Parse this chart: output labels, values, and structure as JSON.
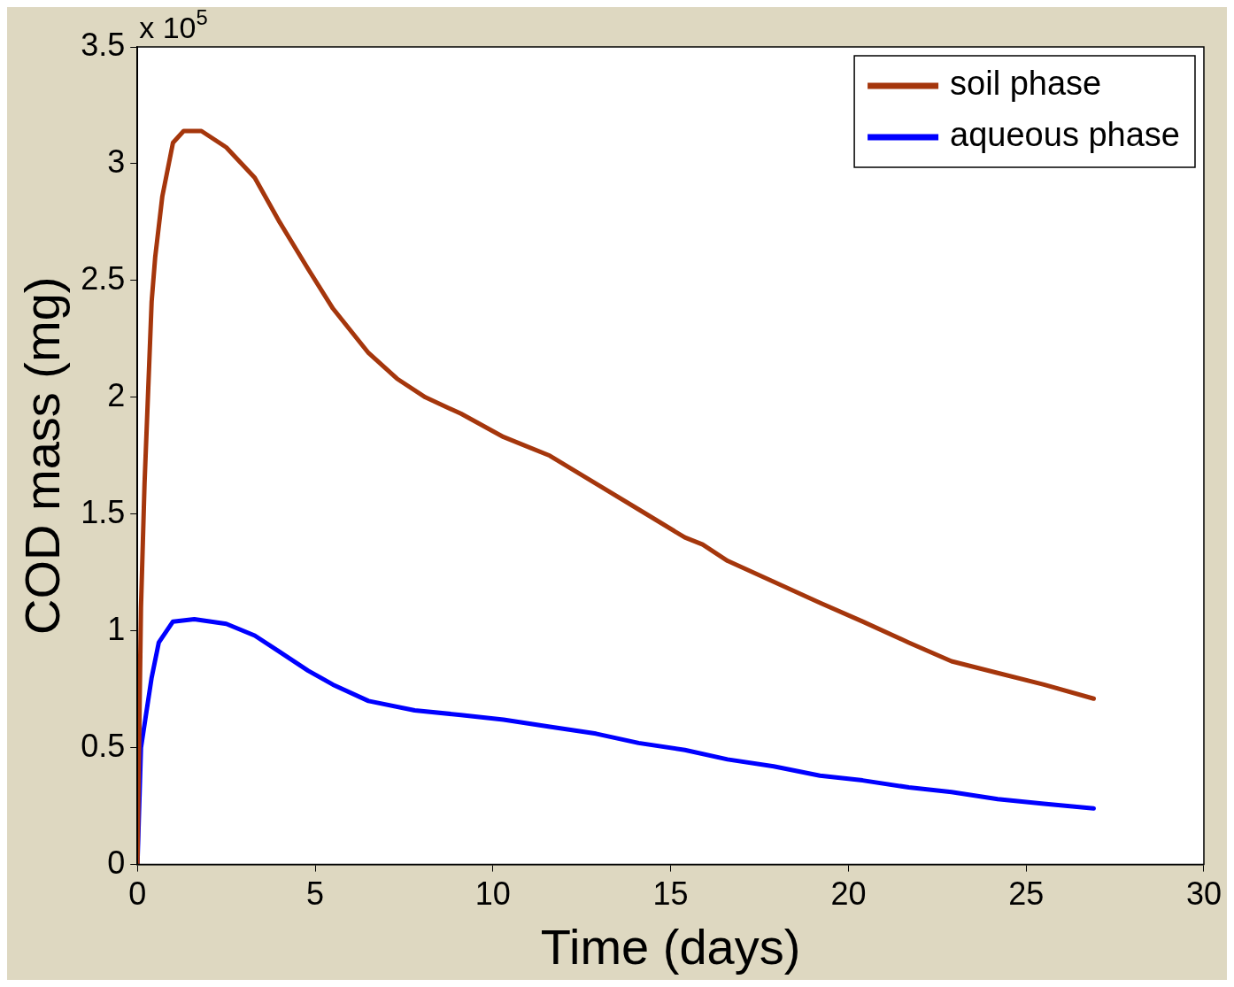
{
  "chart_data": {
    "type": "line",
    "xlabel": "Time (days)",
    "ylabel": "COD mass (mg)",
    "annotations": [
      "x 10$^{5}$"
    ],
    "xlim": [
      0,
      30
    ],
    "xticks": [
      0,
      5,
      10,
      15,
      20,
      25,
      30
    ],
    "ylim": [
      0,
      3.5
    ],
    "yticks": [
      0,
      0.5,
      1,
      1.5,
      2,
      2.5,
      3,
      3.5
    ],
    "grid": false,
    "legend": "top right",
    "marker": "none",
    "line_style": "solid",
    "series": [
      {
        "name": "soil phase",
        "color": "#a5360c",
        "x": [
          0,
          0.1,
          0.2,
          0.4,
          0.5,
          0.7,
          1.0,
          1.3,
          1.8,
          2.5,
          3.3,
          4.0,
          4.8,
          5.5,
          6.5,
          7.3,
          8.1,
          9.1,
          10.3,
          11.6,
          12.9,
          14.1,
          15.4,
          15.9,
          16.6,
          17.9,
          19.2,
          20.4,
          21.7,
          22.9,
          24.2,
          25.5,
          26.9
        ],
        "values": [
          0,
          1.1,
          1.63,
          2.41,
          2.6,
          2.86,
          3.09,
          3.14,
          3.14,
          3.07,
          2.94,
          2.75,
          2.55,
          2.38,
          2.19,
          2.08,
          2.0,
          1.93,
          1.83,
          1.75,
          1.63,
          1.52,
          1.4,
          1.37,
          1.3,
          1.21,
          1.12,
          1.04,
          0.95,
          0.87,
          0.82,
          0.77,
          0.71
        ]
      },
      {
        "name": "aqueous phase",
        "color": "#0000ff",
        "x": [
          0,
          0.1,
          0.4,
          0.6,
          1.0,
          1.6,
          2.5,
          3.3,
          4.0,
          4.8,
          5.5,
          6.5,
          7.8,
          9.1,
          10.3,
          11.6,
          12.9,
          14.1,
          15.4,
          16.6,
          17.9,
          19.2,
          20.4,
          21.7,
          22.9,
          24.2,
          25.5,
          26.9
        ],
        "values": [
          0,
          0.5,
          0.8,
          0.95,
          1.04,
          1.05,
          1.03,
          0.98,
          0.91,
          0.83,
          0.77,
          0.7,
          0.66,
          0.64,
          0.62,
          0.59,
          0.56,
          0.52,
          0.49,
          0.45,
          0.42,
          0.38,
          0.36,
          0.33,
          0.31,
          0.28,
          0.26,
          0.24
        ]
      }
    ]
  }
}
